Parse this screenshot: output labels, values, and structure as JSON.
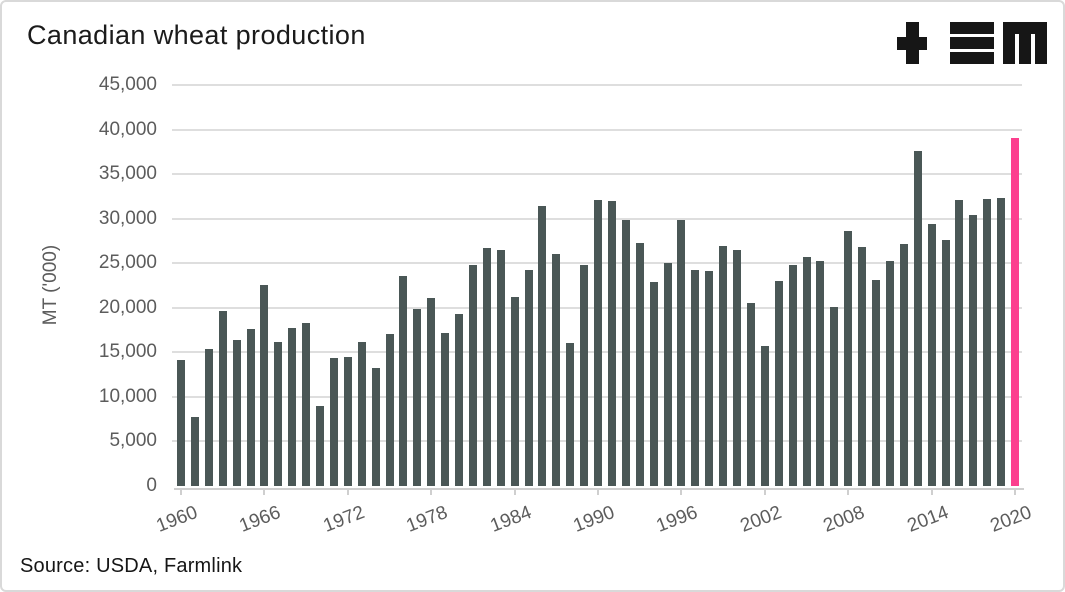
{
  "footer": {
    "source": "Source: USDA, Farmlink"
  },
  "logo": {
    "icons": [
      "plus-icon",
      "triple-bar-icon",
      "m-icon"
    ],
    "color": "#161616"
  },
  "chart_data": {
    "type": "bar",
    "title": "Canadian wheat production",
    "xlabel": "",
    "ylabel": "MT ('000)",
    "ylim": [
      0,
      45000
    ],
    "grid": "horizontal",
    "legend": "none",
    "bar_color": "#4a5756",
    "highlight_color": "#fc3f8e",
    "gridline_color": "#dedede",
    "axis_text_color": "#5c5c5c",
    "highlight_year": 2020,
    "yticks": [
      {
        "value": 0,
        "label": "0"
      },
      {
        "value": 5000,
        "label": "5,000"
      },
      {
        "value": 10000,
        "label": "10,000"
      },
      {
        "value": 15000,
        "label": "15,000"
      },
      {
        "value": 20000,
        "label": "20,000"
      },
      {
        "value": 25000,
        "label": "25,000"
      },
      {
        "value": 30000,
        "label": "30,000"
      },
      {
        "value": 35000,
        "label": "35,000"
      },
      {
        "value": 40000,
        "label": "40,000"
      },
      {
        "value": 45000,
        "label": "45,000"
      }
    ],
    "xticks": [
      "1960",
      "1966",
      "1972",
      "1978",
      "1984",
      "1990",
      "1996",
      "2002",
      "2008",
      "2014",
      "2020"
    ],
    "years": [
      1960,
      1961,
      1962,
      1963,
      1964,
      1965,
      1966,
      1967,
      1968,
      1969,
      1970,
      1971,
      1972,
      1973,
      1974,
      1975,
      1976,
      1977,
      1978,
      1979,
      1980,
      1981,
      1982,
      1983,
      1984,
      1985,
      1986,
      1987,
      1988,
      1989,
      1990,
      1991,
      1992,
      1993,
      1994,
      1995,
      1996,
      1997,
      1998,
      1999,
      2000,
      2001,
      2002,
      2003,
      2004,
      2005,
      2006,
      2007,
      2008,
      2009,
      2010,
      2011,
      2012,
      2013,
      2014,
      2015,
      2016,
      2017,
      2018,
      2019,
      2020
    ],
    "values": [
      14108,
      7713,
      15393,
      19691,
      16349,
      17674,
      22516,
      16137,
      17686,
      18266,
      9024,
      14412,
      14514,
      16159,
      13295,
      17078,
      23587,
      19862,
      21146,
      17196,
      19292,
      24802,
      26736,
      26505,
      21199,
      24252,
      31378,
      25992,
      15996,
      24796,
      32098,
      31946,
      29870,
      27232,
      22920,
      25037,
      29801,
      24280,
      24076,
      26900,
      26519,
      20568,
      15686,
      23054,
      24796,
      25748,
      25265,
      20054,
      28611,
      26848,
      23167,
      25288,
      27205,
      37589,
      29420,
      27594,
      32140,
      30377,
      32201,
      32348,
      39000
    ]
  }
}
